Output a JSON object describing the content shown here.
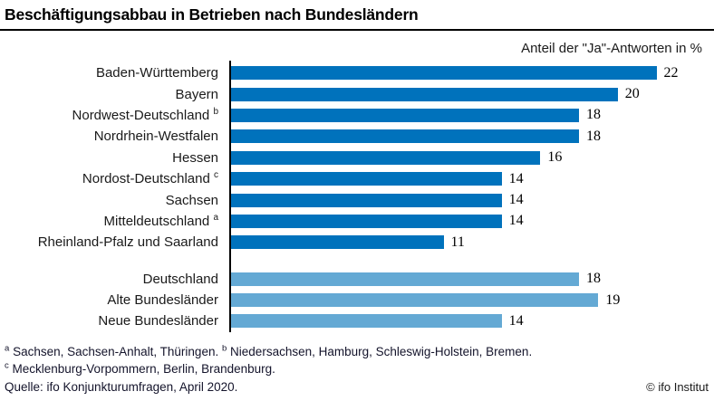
{
  "header": {
    "title": "Beschäftigungsabbau in Betrieben nach Bundesländern",
    "subtitle": "Anteil der \"Ja\"-Antworten in %"
  },
  "chart_data": {
    "type": "bar",
    "orientation": "horizontal",
    "title": "Beschäftigungsabbau in Betrieben nach Bundesländern",
    "subtitle": "Anteil der \"Ja\"-Antworten in %",
    "unit": "%",
    "xlim": [
      0,
      22
    ],
    "grid": false,
    "legend": false,
    "groups": [
      {
        "name": "regions",
        "color": "#0072bc",
        "items": [
          {
            "label": "Baden-Württemberg",
            "mark": "",
            "value": 22
          },
          {
            "label": "Bayern",
            "mark": "",
            "value": 20
          },
          {
            "label": "Nordwest-Deutschland",
            "mark": "b",
            "value": 18
          },
          {
            "label": "Nordrhein-Westfalen",
            "mark": "",
            "value": 18
          },
          {
            "label": "Hessen",
            "mark": "",
            "value": 16
          },
          {
            "label": "Nordost-Deutschland",
            "mark": "c",
            "value": 14
          },
          {
            "label": "Sachsen",
            "mark": "",
            "value": 14
          },
          {
            "label": "Mitteldeutschland",
            "mark": "a",
            "value": 14
          },
          {
            "label": "Rheinland-Pfalz und Saarland",
            "mark": "",
            "value": 11
          }
        ]
      },
      {
        "name": "aggregates",
        "color": "#64a9d4",
        "items": [
          {
            "label": "Deutschland",
            "mark": "",
            "value": 18
          },
          {
            "label": "Alte Bundesländer",
            "mark": "",
            "value": 19
          },
          {
            "label": "Neue Bundesländer",
            "mark": "",
            "value": 14
          }
        ]
      }
    ]
  },
  "footnotes": {
    "items": [
      {
        "mark": "a",
        "text": "Sachsen, Sachsen-Anhalt, Thüringen."
      },
      {
        "mark": "b",
        "text": "Niedersachsen, Hamburg, Schleswig-Holstein, Bremen."
      },
      {
        "mark": "c",
        "text": "Mecklenburg-Vorpommern, Berlin, Brandenburg."
      }
    ],
    "source": "Quelle: ifo Konjunkturumfragen, April 2020.",
    "credit": "© ifo Institut"
  },
  "colors": {
    "bar_dark": "#0072bc",
    "bar_light": "#64a9d4",
    "rule": "#000000",
    "text": "#1a1a1a"
  }
}
